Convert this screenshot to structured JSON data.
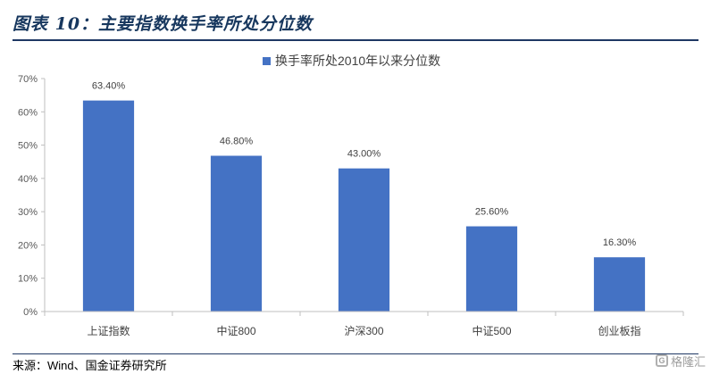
{
  "header": {
    "title": "图表 10：主要指数换手率所处分位数"
  },
  "footer": {
    "source": "来源：Wind、国金证券研究所"
  },
  "watermark": {
    "text": "格隆汇"
  },
  "colors": {
    "bar": "#4472c4",
    "title": "#17375e",
    "rule": "#1f3864"
  },
  "chart_data": {
    "type": "bar",
    "title": "",
    "xlabel": "",
    "ylabel": "",
    "legend": "top-center",
    "grid": false,
    "ylim": [
      0,
      70
    ],
    "y_ticks": [
      0,
      10,
      20,
      30,
      40,
      50,
      60,
      70
    ],
    "y_tick_labels": [
      "0%",
      "10%",
      "20%",
      "30%",
      "40%",
      "50%",
      "60%",
      "70%"
    ],
    "categories": [
      "上证指数",
      "中证800",
      "沪深300",
      "中证500",
      "创业板指"
    ],
    "series": [
      {
        "name": "换手率所处2010年以来分位数",
        "values": [
          63.4,
          46.8,
          43.0,
          25.6,
          16.3
        ],
        "labels": [
          "63.40%",
          "46.80%",
          "43.00%",
          "25.60%",
          "16.30%"
        ]
      }
    ]
  }
}
